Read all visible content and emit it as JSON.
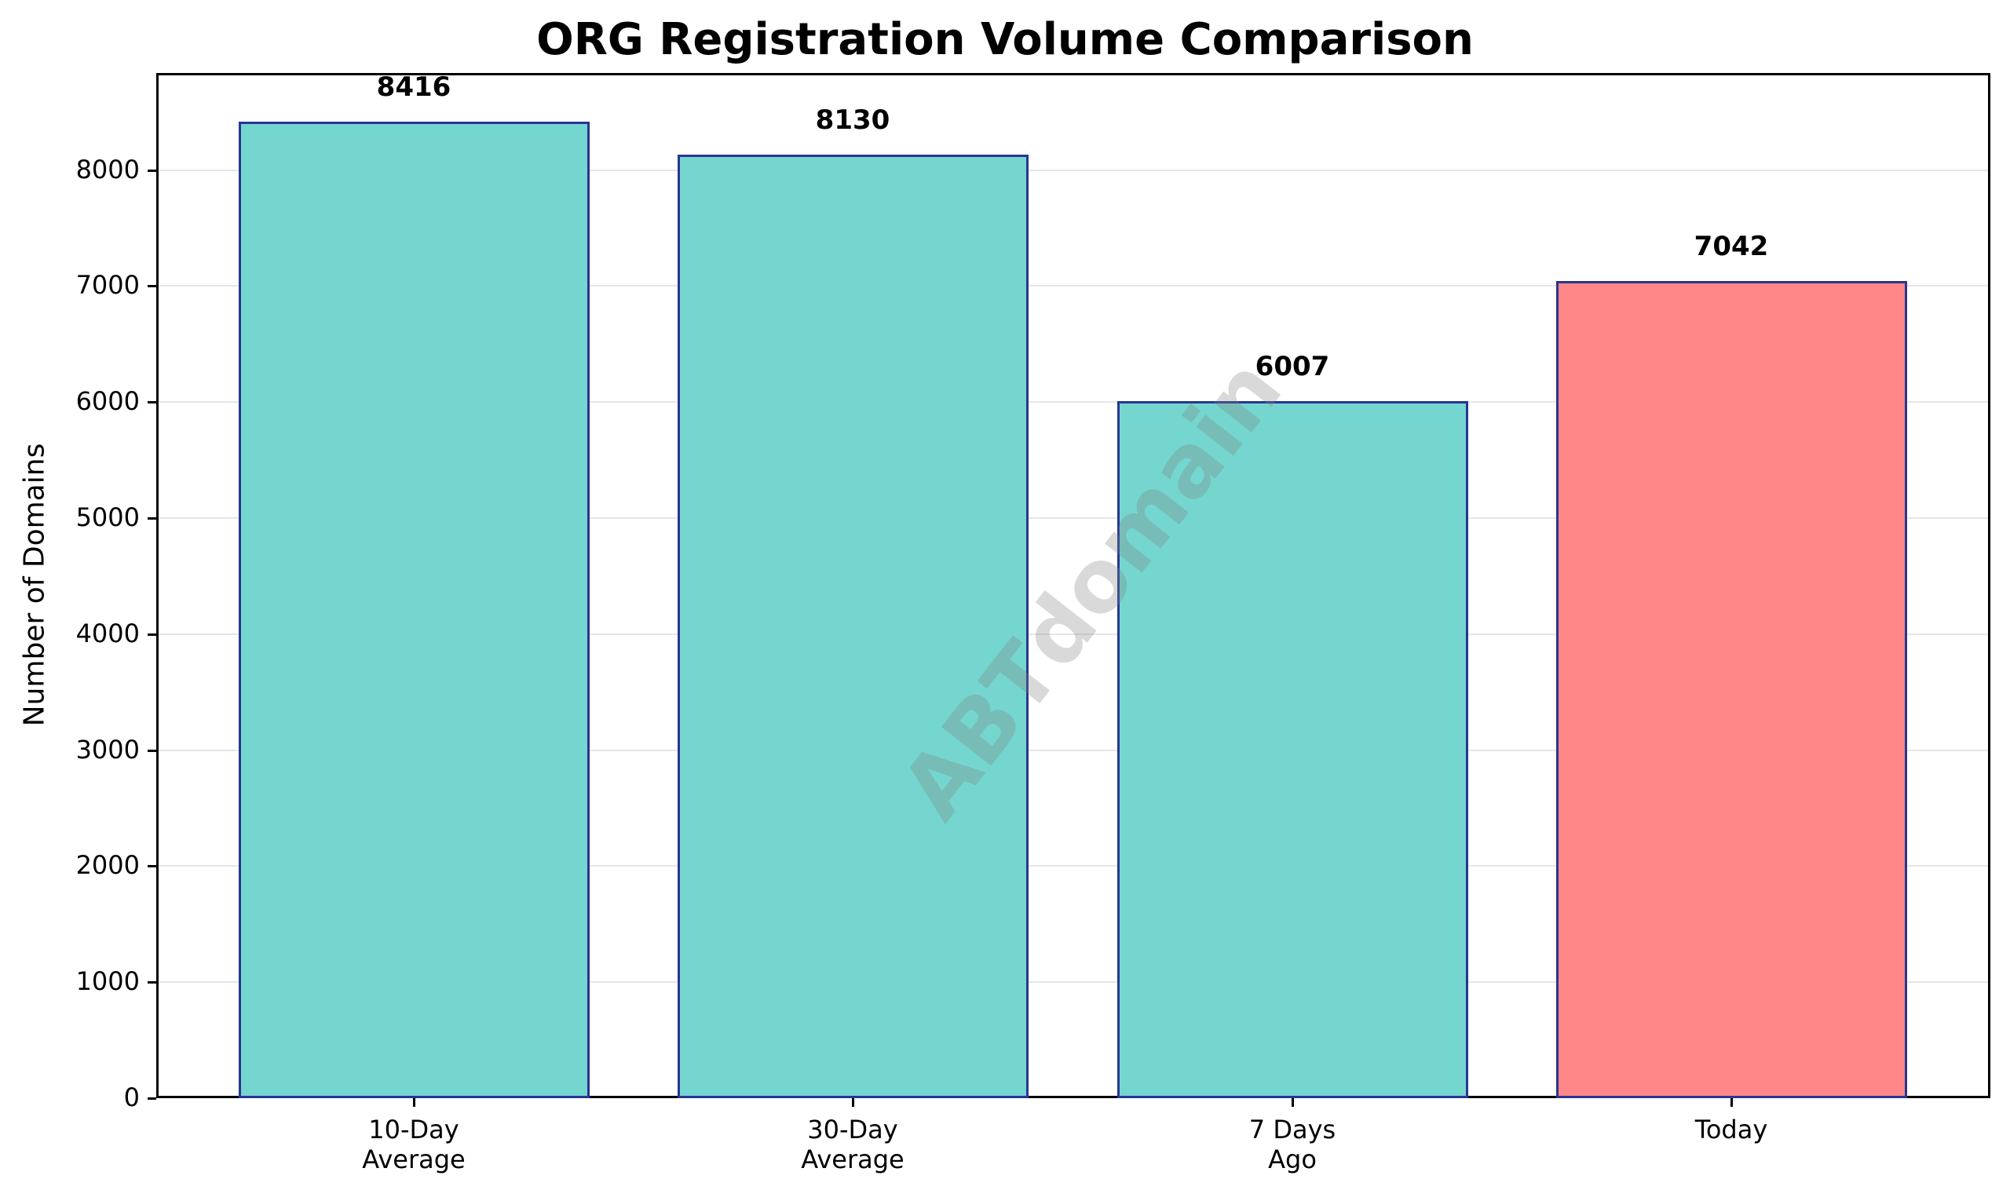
{
  "chart_data": {
    "type": "bar",
    "title": "ORG Registration Volume Comparison",
    "xlabel": "",
    "ylabel": "Number of Domains",
    "categories": [
      "10-Day\nAverage",
      "30-Day\nAverage",
      "7 Days\nAgo",
      "Today"
    ],
    "values": [
      8416,
      8130,
      6007,
      7042
    ],
    "value_labels": [
      "8416",
      "8130",
      "6007",
      "7042"
    ],
    "colors": [
      "#74d6cf",
      "#74d6cf",
      "#74d6cf",
      "#ff8787"
    ],
    "edge_color": "#283593",
    "ylim": [
      0,
      8839
    ],
    "yticks": [
      "0",
      "1000",
      "2000",
      "3000",
      "4000",
      "5000",
      "6000",
      "7000",
      "8000"
    ],
    "grid": "y",
    "legend": null,
    "watermark": "ABTdomain"
  }
}
